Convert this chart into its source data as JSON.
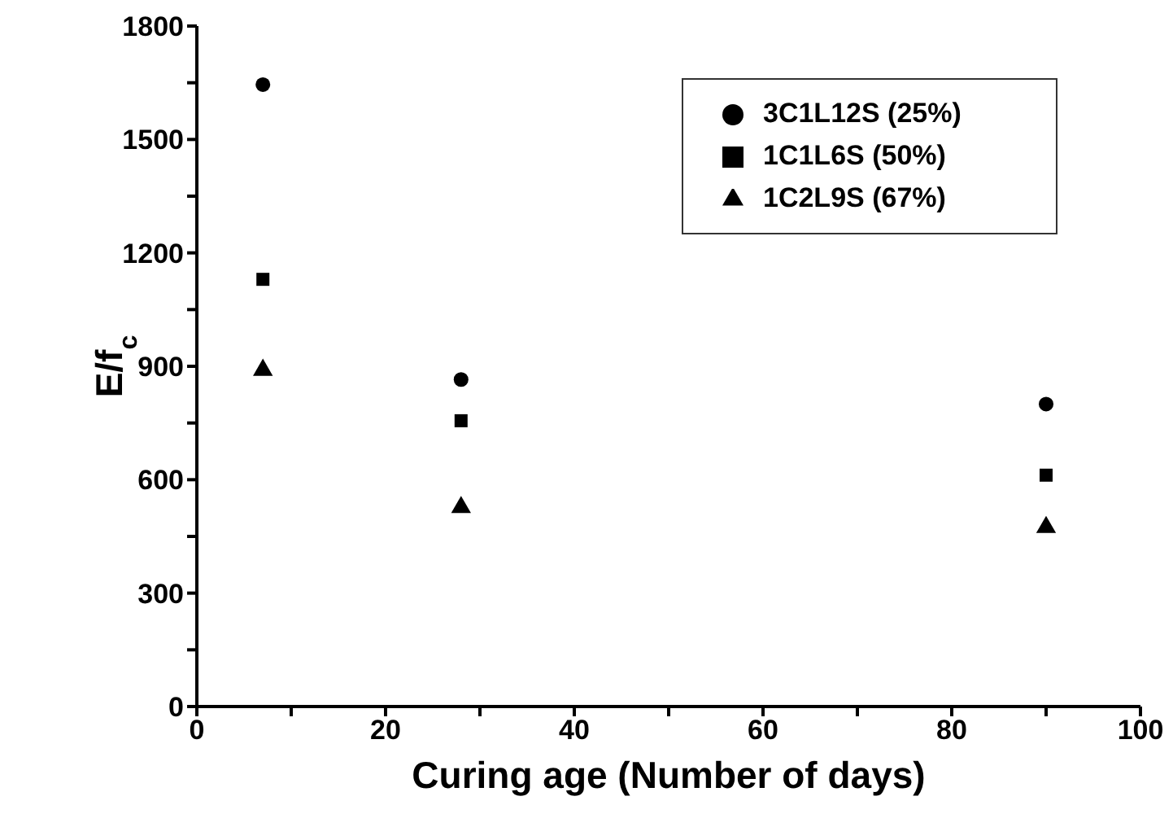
{
  "chart_data": {
    "type": "scatter",
    "xlabel": "Curing age (Number of days)",
    "ylabel": "E/f$_{c}$",
    "x": [
      7,
      28,
      90
    ],
    "series": [
      {
        "name": "3C1L12S (25%)",
        "color": "#000000",
        "marker": "circle",
        "values": [
          1645,
          865,
          800
        ]
      },
      {
        "name": "1C1L6S (50%)",
        "color": "#000000",
        "marker": "square",
        "values": [
          1130,
          756,
          612
        ]
      },
      {
        "name": "1C2L9S (67%)",
        "color": "#000000",
        "marker": "triangle",
        "values": [
          890,
          527,
          474
        ]
      }
    ],
    "xlim": [
      0,
      100
    ],
    "xticks": [
      0,
      {
        "value": 10,
        "label": null
      },
      20,
      {
        "value": 30,
        "label": null
      },
      40,
      {
        "value": 50,
        "label": null
      },
      60,
      {
        "value": 70,
        "label": null
      },
      80,
      {
        "value": 90,
        "label": null
      },
      100
    ],
    "ylim": [
      0,
      1800
    ],
    "yticks": [
      0,
      {
        "value": 150,
        "label": null
      },
      300,
      {
        "value": 450,
        "label": null
      },
      600,
      {
        "value": 750,
        "label": null
      },
      900,
      {
        "value": 1050,
        "label": null
      },
      1200,
      {
        "value": 1350,
        "label": null
      },
      1500,
      {
        "value": 1650,
        "label": null
      },
      1800
    ],
    "legend": "top right",
    "grid": false
  }
}
